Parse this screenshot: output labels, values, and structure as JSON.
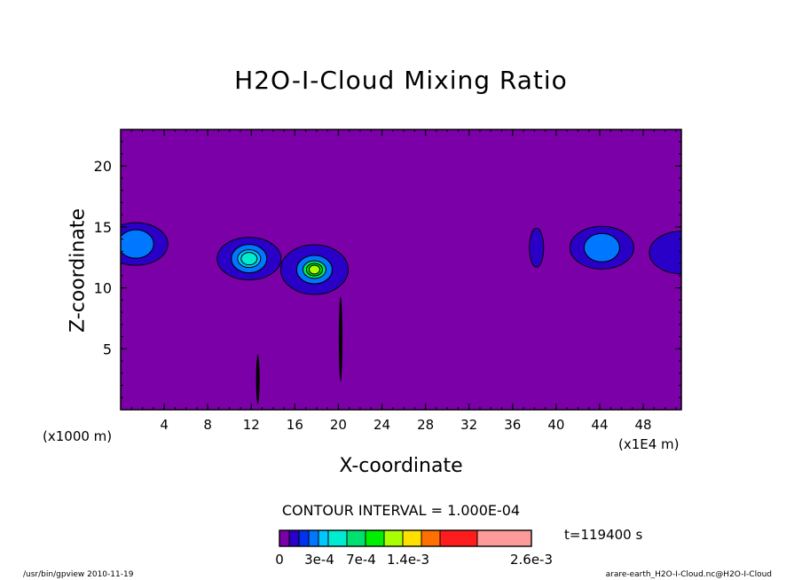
{
  "chart_data": {
    "type": "heatmap",
    "title": "H2O-I-Cloud Mixing Ratio",
    "xlabel": "X-coordinate",
    "ylabel": "Z-coordinate",
    "x_unit_label": "(x1000 m)",
    "x_scale_label": "(x1E4 m)",
    "xlim": [
      0,
      51.5
    ],
    "ylim": [
      0,
      23
    ],
    "x_ticks": [
      4,
      8,
      12,
      16,
      20,
      24,
      28,
      32,
      36,
      40,
      44,
      48
    ],
    "y_ticks": [
      5,
      10,
      15,
      20
    ],
    "background_color": "#7b00a8",
    "contour_interval_text": "CONTOUR INTERVAL = 1.000E-04",
    "time_text": "t=119400 s",
    "colorbar": {
      "colors": [
        "#7b00a8",
        "#2a00c8",
        "#0033ee",
        "#0077ff",
        "#00c8ff",
        "#00ecd0",
        "#00e070",
        "#00ee00",
        "#a8ff00",
        "#ffe000",
        "#ff7000",
        "#ff1c1c",
        "#ff9a9a"
      ],
      "bounds": [
        0,
        0.0001,
        0.0002,
        0.0003,
        0.0004,
        0.0005,
        0.0006,
        0.0007,
        0.001,
        0.0014,
        0.0018,
        0.0022,
        0.0026
      ],
      "labels": [
        "0",
        "3e-4",
        "7e-4",
        "1.4e-3",
        "2.6e-3"
      ]
    },
    "features": [
      {
        "x": 1.4,
        "z": 13.6,
        "levels": [
          0.0001,
          0.0003
        ],
        "shape": "blob"
      },
      {
        "x": 11.8,
        "z": 12.4,
        "levels": [
          0.0001,
          0.0003,
          0.0004,
          0.0005
        ],
        "shape": "blob"
      },
      {
        "x": 17.8,
        "z": 11.5,
        "levels": [
          0.0001,
          0.0003,
          0.0006,
          0.0007,
          0.001
        ],
        "shape": "blob"
      },
      {
        "x": 38.2,
        "z": 13.3,
        "levels": [
          0.0001
        ],
        "shape": "blob"
      },
      {
        "x": 44.2,
        "z": 13.3,
        "levels": [
          0.0001,
          0.0003
        ],
        "shape": "blob"
      },
      {
        "x": 51.5,
        "z": 12.9,
        "levels": [
          0.0001
        ],
        "shape": "blob"
      },
      {
        "x": 12.6,
        "z": 2.5,
        "levels": [
          0.0001
        ],
        "shape": "filament"
      },
      {
        "x": 20.2,
        "z": 5.8,
        "levels": [
          0.0001
        ],
        "shape": "filament"
      }
    ]
  },
  "footer": {
    "left": "/usr/bin/gpview   2010-11-19",
    "right": "arare-earth_H2O-I-Cloud.nc@H2O-I-Cloud"
  }
}
